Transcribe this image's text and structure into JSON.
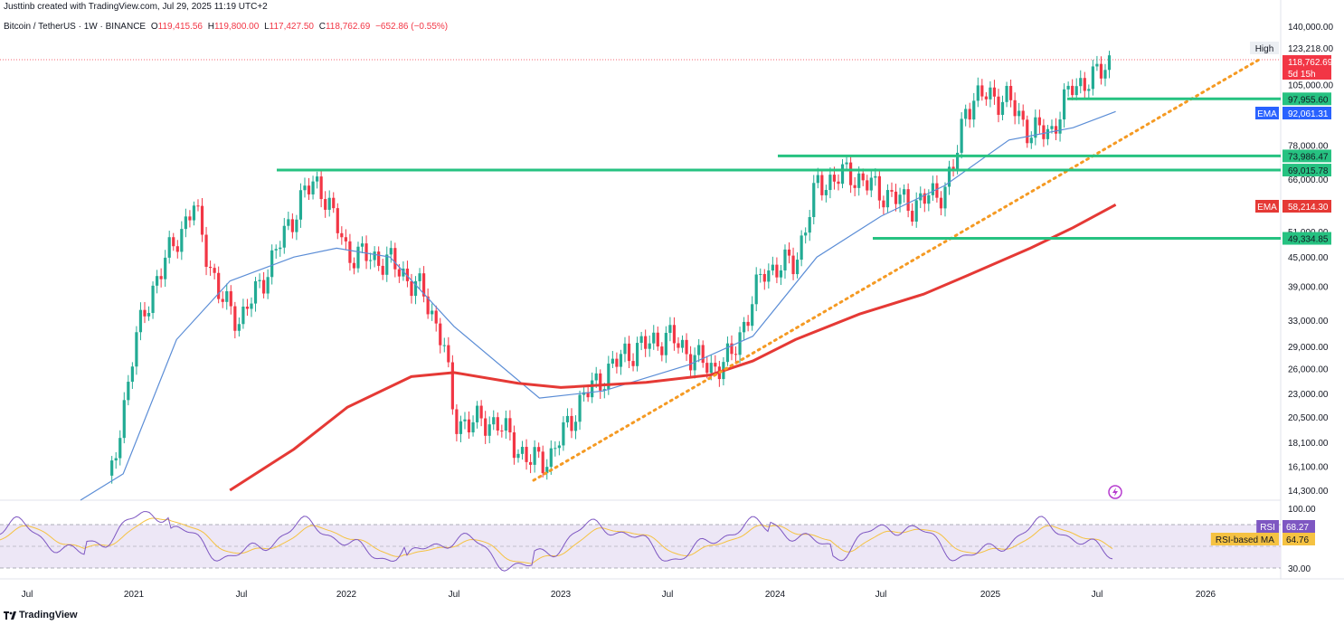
{
  "header": {
    "created_by": "Justtinb created with TradingView.com, Jul 29, 2025 11:19 UTC+2",
    "symbol": "Bitcoin / TetherUS · 1W · BINANCE",
    "o_label": "O",
    "o_value": "119,415.56",
    "h_label": "H",
    "h_value": "119,800.00",
    "l_label": "L",
    "l_value": "117,427.50",
    "c_label": "C",
    "c_value": "118,762.69",
    "change": "−652.86 (−0.55%)"
  },
  "brand": "TradingView",
  "colors": {
    "up": "#22ab94",
    "down": "#f23645",
    "ema_fast": "#5b8dd6",
    "ema_slow": "#e53935",
    "level": "#26c281",
    "trend": "#f59a23",
    "rsi": "#7e57c2",
    "rsi_ma": "#f5c242",
    "rsi_band": "#ede7f6"
  },
  "chart_data": {
    "type": "candlestick",
    "yscale": "log",
    "y_ticks": [
      "140,000.00",
      "105,000.00",
      "78,000.00",
      "66,000.00",
      "51,000.00",
      "45,000.00",
      "39,000.00",
      "33,000.00",
      "29,000.00",
      "26,000.00",
      "23,000.00",
      "20,500.00",
      "18,100.00",
      "16,100.00",
      "14,300.00"
    ],
    "x_ticks": [
      "Jul",
      "2021",
      "Jul",
      "2022",
      "Jul",
      "2023",
      "Jul",
      "2024",
      "Jul",
      "2025",
      "Jul",
      "2026"
    ],
    "price_labels": [
      {
        "name": "high-label",
        "tag": "High",
        "value": "123,218.00"
      },
      {
        "name": "current-price-label",
        "value": "118,762.69",
        "sub": "5d 15h"
      },
      {
        "name": "level-97955-label",
        "value": "97,955.60"
      },
      {
        "name": "ema-fast-label",
        "tag": "EMA",
        "value": "92,061.31"
      },
      {
        "name": "level-73986-label",
        "value": "73,986.47"
      },
      {
        "name": "level-69015-label",
        "value": "69,015.78"
      },
      {
        "name": "ema-slow-label",
        "tag": "EMA",
        "value": "58,214.30"
      },
      {
        "name": "level-49334-label",
        "value": "49,334.85"
      }
    ],
    "horizontal_levels": [
      97955.6,
      73986.47,
      69015.78,
      49334.85
    ],
    "trendline": {
      "from": [
        "2022-11",
        "15500"
      ],
      "to": [
        "2026-06",
        "122000"
      ]
    },
    "ema_fast": [
      [
        2020.75,
        11500
      ],
      [
        2020.95,
        15500
      ],
      [
        2021.2,
        30000
      ],
      [
        2021.45,
        40000
      ],
      [
        2021.75,
        45000
      ],
      [
        2021.95,
        47000
      ],
      [
        2022.2,
        45000
      ],
      [
        2022.5,
        32000
      ],
      [
        2022.9,
        22500
      ],
      [
        2023.2,
        23300
      ],
      [
        2023.6,
        26500
      ],
      [
        2023.9,
        30500
      ],
      [
        2024.2,
        45000
      ],
      [
        2024.5,
        55000
      ],
      [
        2024.8,
        64000
      ],
      [
        2025.1,
        80000
      ],
      [
        2025.4,
        85000
      ],
      [
        2025.6,
        92061
      ]
    ],
    "ema_slow": [
      [
        2021.45,
        14300
      ],
      [
        2021.75,
        17500
      ],
      [
        2022.0,
        21500
      ],
      [
        2022.3,
        25000
      ],
      [
        2022.5,
        25500
      ],
      [
        2022.8,
        24200
      ],
      [
        2023.0,
        23700
      ],
      [
        2023.4,
        24300
      ],
      [
        2023.7,
        25200
      ],
      [
        2023.9,
        27000
      ],
      [
        2024.1,
        30000
      ],
      [
        2024.4,
        34000
      ],
      [
        2024.7,
        37500
      ],
      [
        2024.9,
        41000
      ],
      [
        2025.2,
        47000
      ],
      [
        2025.4,
        52000
      ],
      [
        2025.6,
        58214
      ]
    ],
    "rsi": {
      "ticks": [
        "100.00",
        "30.00"
      ],
      "rsi_label": "RSI",
      "rsi_value": "68.27",
      "ma_label": "RSI-based MA",
      "ma_value": "64.76"
    }
  }
}
